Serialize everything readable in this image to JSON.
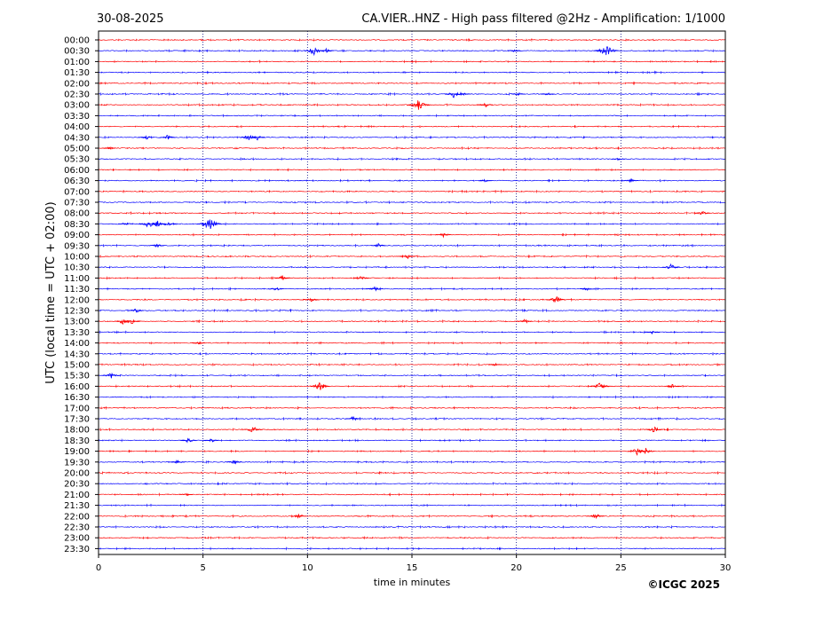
{
  "header": {
    "date": "30-08-2025",
    "title": "CA.VIER..HNZ - High pass filtered @2Hz - Amplification: 1/1000"
  },
  "footer": {
    "copyright": "©ICGC 2025"
  },
  "chart_data": {
    "type": "line",
    "title": "CA.VIER..HNZ - High pass filtered @2Hz - Amplification: 1/1000",
    "date": "30-08-2025",
    "xlabel": "time in minutes",
    "ylabel": "UTC (local time = UTC + 02:00)",
    "xlim": [
      0,
      30
    ],
    "x_ticks": [
      0,
      5,
      10,
      15,
      20,
      25,
      30
    ],
    "vertical_grid": [
      5,
      10,
      15,
      20,
      25
    ],
    "row_labels": [
      "00:00",
      "00:30",
      "01:00",
      "01:30",
      "02:00",
      "02:30",
      "03:00",
      "03:30",
      "04:00",
      "04:30",
      "05:00",
      "05:30",
      "06:00",
      "06:30",
      "07:00",
      "07:30",
      "08:00",
      "08:30",
      "09:00",
      "09:30",
      "10:00",
      "10:30",
      "11:00",
      "11:30",
      "12:00",
      "12:30",
      "13:00",
      "13:30",
      "14:00",
      "14:30",
      "15:00",
      "15:30",
      "16:00",
      "16:30",
      "17:00",
      "17:30",
      "18:00",
      "18:30",
      "19:00",
      "19:30",
      "20:00",
      "20:30",
      "21:00",
      "21:30",
      "22:00",
      "22:30",
      "23:00",
      "23:30"
    ],
    "row_colors": [
      "#ff0000",
      "#0000ff"
    ],
    "events": [
      {
        "row": 1,
        "minute": 10.3,
        "amp": 0.55
      },
      {
        "row": 1,
        "minute": 10.9,
        "amp": 0.25
      },
      {
        "row": 1,
        "minute": 24.3,
        "amp": 0.75
      },
      {
        "row": 1,
        "minute": 19.9,
        "amp": 0.15
      },
      {
        "row": 5,
        "minute": 17.0,
        "amp": 0.45
      },
      {
        "row": 5,
        "minute": 17.4,
        "amp": 0.25
      },
      {
        "row": 5,
        "minute": 20.1,
        "amp": 0.2
      },
      {
        "row": 5,
        "minute": 21.5,
        "amp": 0.2
      },
      {
        "row": 6,
        "minute": 15.3,
        "amp": 0.7
      },
      {
        "row": 6,
        "minute": 18.5,
        "amp": 0.3
      },
      {
        "row": 9,
        "minute": 2.3,
        "amp": 0.25
      },
      {
        "row": 9,
        "minute": 3.3,
        "amp": 0.3
      },
      {
        "row": 9,
        "minute": 7.2,
        "amp": 0.4
      },
      {
        "row": 9,
        "minute": 7.6,
        "amp": 0.3
      },
      {
        "row": 10,
        "minute": 0.5,
        "amp": 0.15
      },
      {
        "row": 11,
        "minute": 24.9,
        "amp": 0.2
      },
      {
        "row": 13,
        "minute": 18.5,
        "amp": 0.2
      },
      {
        "row": 13,
        "minute": 25.5,
        "amp": 0.25
      },
      {
        "row": 16,
        "minute": 28.9,
        "amp": 0.3
      },
      {
        "row": 17,
        "minute": 1.3,
        "amp": 0.25
      },
      {
        "row": 17,
        "minute": 2.4,
        "amp": 0.5
      },
      {
        "row": 17,
        "minute": 2.8,
        "amp": 0.45
      },
      {
        "row": 17,
        "minute": 3.3,
        "amp": 0.35
      },
      {
        "row": 17,
        "minute": 5.3,
        "amp": 0.8
      },
      {
        "row": 18,
        "minute": 16.5,
        "amp": 0.3
      },
      {
        "row": 19,
        "minute": 2.8,
        "amp": 0.25
      },
      {
        "row": 19,
        "minute": 13.4,
        "amp": 0.25
      },
      {
        "row": 20,
        "minute": 14.8,
        "amp": 0.3
      },
      {
        "row": 21,
        "minute": 27.4,
        "amp": 0.4
      },
      {
        "row": 22,
        "minute": 8.8,
        "amp": 0.3
      },
      {
        "row": 22,
        "minute": 12.6,
        "amp": 0.3
      },
      {
        "row": 23,
        "minute": 8.5,
        "amp": 0.3
      },
      {
        "row": 23,
        "minute": 13.2,
        "amp": 0.35
      },
      {
        "row": 23,
        "minute": 23.4,
        "amp": 0.25
      },
      {
        "row": 24,
        "minute": 10.2,
        "amp": 0.3
      },
      {
        "row": 24,
        "minute": 21.9,
        "amp": 0.45
      },
      {
        "row": 25,
        "minute": 1.8,
        "amp": 0.3
      },
      {
        "row": 26,
        "minute": 1.2,
        "amp": 0.45
      },
      {
        "row": 26,
        "minute": 1.6,
        "amp": 0.4
      },
      {
        "row": 26,
        "minute": 20.4,
        "amp": 0.3
      },
      {
        "row": 27,
        "minute": 26.5,
        "amp": 0.25
      },
      {
        "row": 28,
        "minute": 4.8,
        "amp": 0.2
      },
      {
        "row": 30,
        "minute": 19.0,
        "amp": 0.2
      },
      {
        "row": 31,
        "minute": 0.6,
        "amp": 0.35
      },
      {
        "row": 32,
        "minute": 10.6,
        "amp": 0.55
      },
      {
        "row": 32,
        "minute": 24.0,
        "amp": 0.5
      },
      {
        "row": 32,
        "minute": 27.5,
        "amp": 0.35
      },
      {
        "row": 35,
        "minute": 12.2,
        "amp": 0.3
      },
      {
        "row": 36,
        "minute": 7.4,
        "amp": 0.45
      },
      {
        "row": 36,
        "minute": 26.6,
        "amp": 0.4
      },
      {
        "row": 37,
        "minute": 4.3,
        "amp": 0.3
      },
      {
        "row": 37,
        "minute": 5.4,
        "amp": 0.25
      },
      {
        "row": 38,
        "minute": 25.8,
        "amp": 0.5
      },
      {
        "row": 38,
        "minute": 26.2,
        "amp": 0.4
      },
      {
        "row": 39,
        "minute": 3.8,
        "amp": 0.25
      },
      {
        "row": 39,
        "minute": 6.5,
        "amp": 0.3
      },
      {
        "row": 42,
        "minute": 4.2,
        "amp": 0.2
      },
      {
        "row": 44,
        "minute": 9.6,
        "amp": 0.3
      },
      {
        "row": 44,
        "minute": 23.8,
        "amp": 0.35
      }
    ]
  }
}
